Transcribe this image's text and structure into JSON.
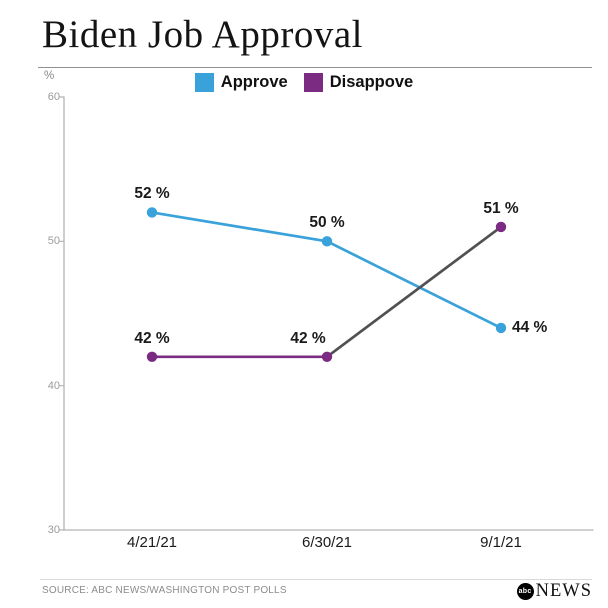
{
  "title": "Biden Job Approval",
  "legend": [
    {
      "label": "Approve",
      "color": "#3aa2db"
    },
    {
      "label": "Disappove",
      "color": "#7b2b82"
    }
  ],
  "y_axis": {
    "unit": "%",
    "ticks": [
      60,
      50,
      40,
      30
    ]
  },
  "chart_data": {
    "type": "line",
    "title": "Biden Job Approval",
    "categories": [
      "4/21/21",
      "6/30/21",
      "9/1/21"
    ],
    "series": [
      {
        "name": "Approve",
        "color": "#3aa2db",
        "values": [
          52,
          50,
          44
        ],
        "point_labels": [
          "52 %",
          "50 %",
          "44 %"
        ]
      },
      {
        "name": "Disappove",
        "color": "#7b2b82",
        "values": [
          42,
          42,
          51
        ],
        "segment_colors": [
          "#7b2b82",
          "#515153"
        ],
        "point_labels": [
          "42 %",
          "42 %",
          "51 %"
        ]
      }
    ],
    "ylabel": "%",
    "ylim": [
      30,
      60
    ],
    "grid": false,
    "legend_position": "top-center"
  },
  "footer": {
    "source": "SOURCE: ABC NEWS/WASHINGTON POST POLLS",
    "logo_circle_text": "abc",
    "logo_text": "NEWS"
  }
}
